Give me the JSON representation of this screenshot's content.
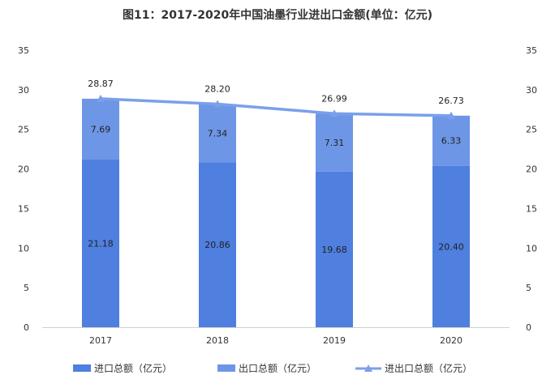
{
  "chart_data": {
    "type": "bar",
    "title": "图11：2017-2020年中国油墨行业进出口金额(单位：亿元)",
    "categories": [
      "2017",
      "2018",
      "2019",
      "2020"
    ],
    "series": [
      {
        "name": "进口总额（亿元）",
        "type": "bar",
        "stack": "total",
        "values": [
          21.18,
          20.86,
          19.68,
          20.4
        ],
        "color": "#4f7fdf"
      },
      {
        "name": "出口总额（亿元）",
        "type": "bar",
        "stack": "total",
        "values": [
          7.69,
          7.34,
          7.31,
          6.33
        ],
        "color": "#6e96e6"
      },
      {
        "name": "进出口总额（亿元）",
        "type": "line",
        "values": [
          28.87,
          28.2,
          26.99,
          26.73
        ],
        "color": "#7aa0ea"
      }
    ],
    "ylim": [
      0,
      35
    ],
    "yticks": [
      0,
      5,
      10,
      15,
      20,
      25,
      30,
      35
    ],
    "y2lim": [
      0,
      35
    ],
    "y2ticks": [
      0,
      5,
      10,
      15,
      20,
      25,
      30,
      35
    ],
    "legend": "bottom",
    "grid": false
  }
}
